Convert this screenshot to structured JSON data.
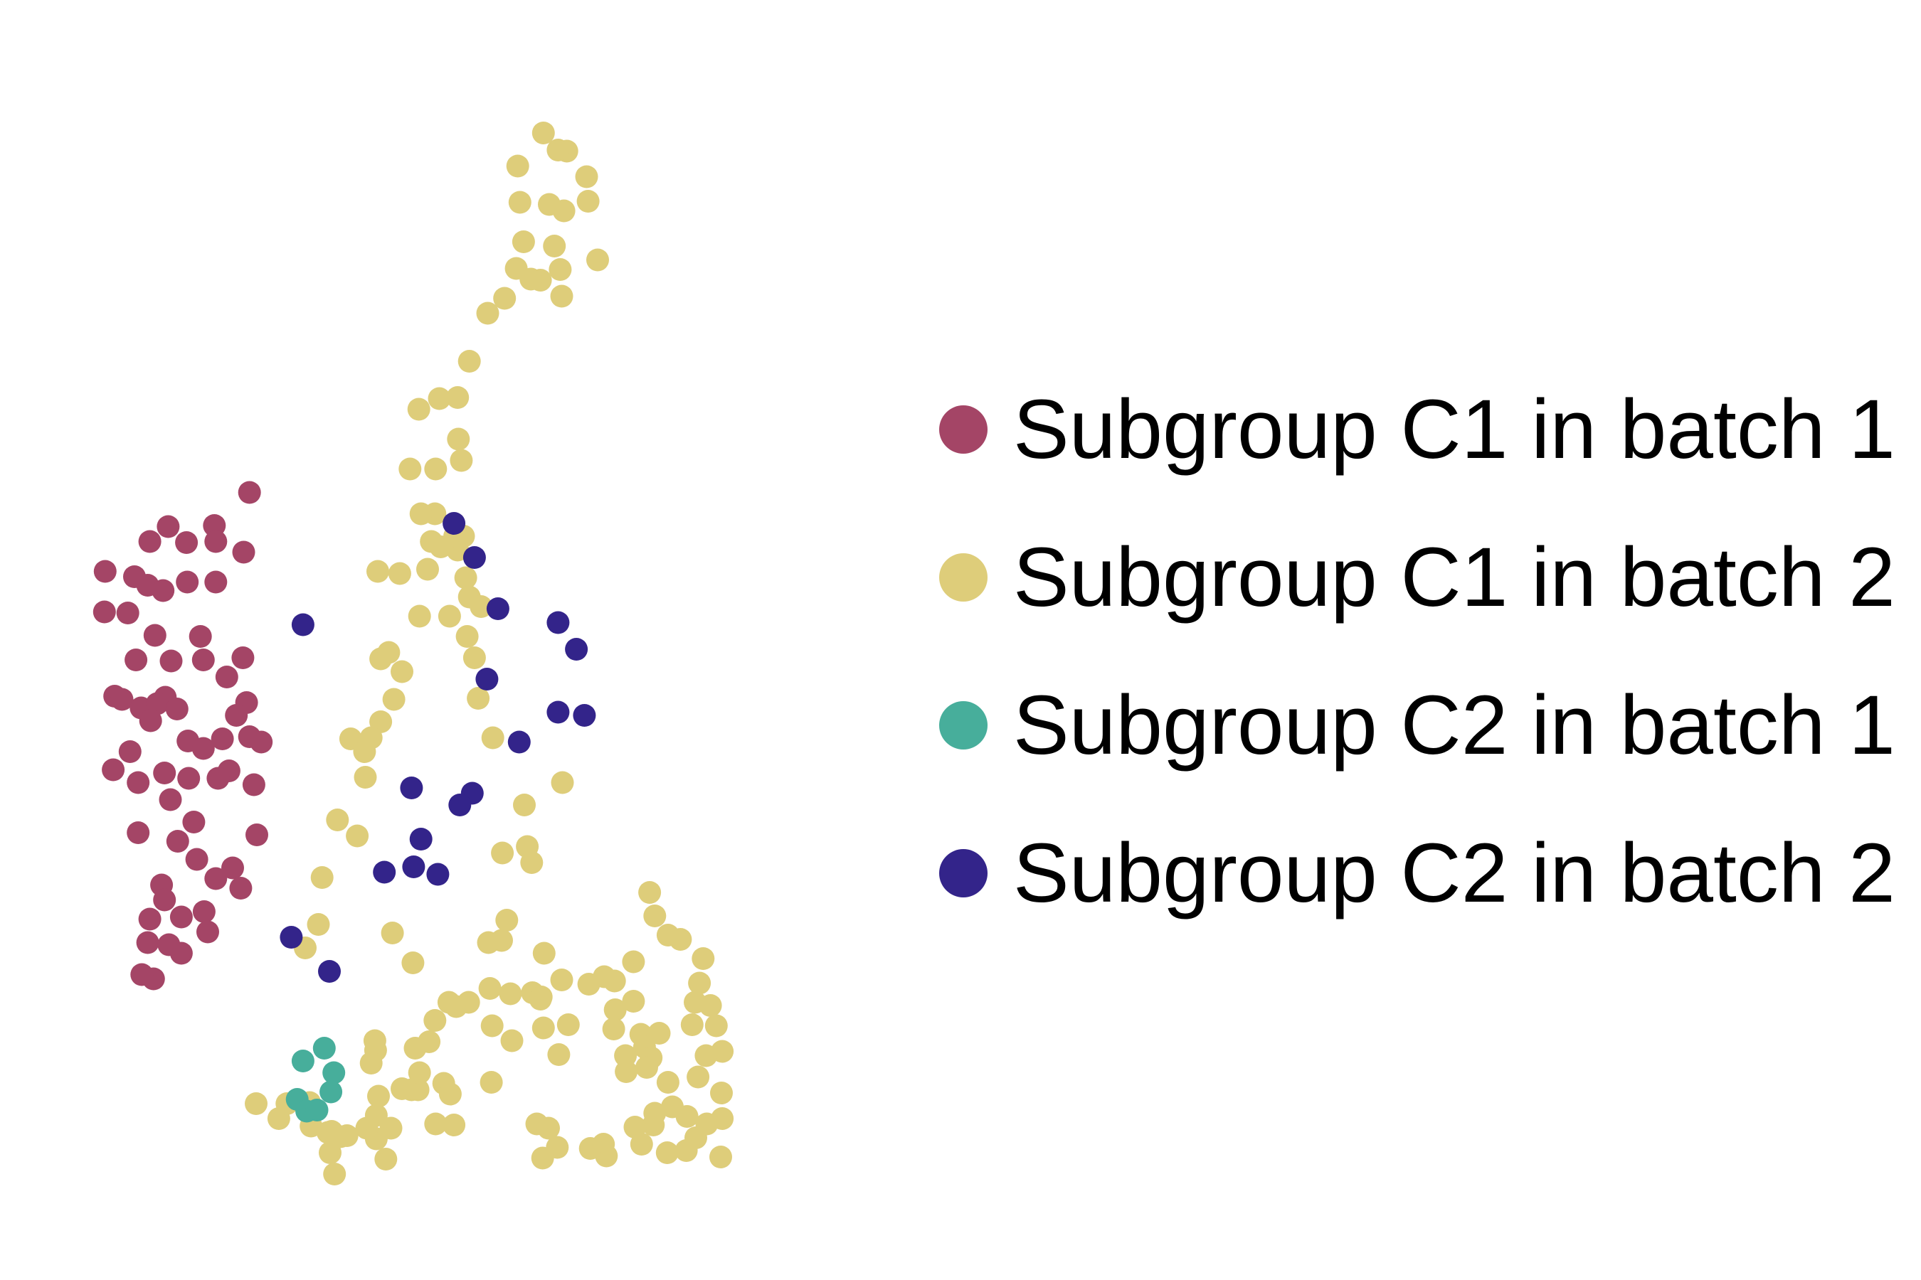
{
  "chart_data": {
    "type": "scatter",
    "title": "",
    "xlabel": "",
    "ylabel": "",
    "xlim": [
      0,
      1
    ],
    "ylim": [
      0,
      1
    ],
    "grid": false,
    "axes_visible": false,
    "legend_position": "right",
    "series": [
      {
        "name": "Subgroup C1 in batch 1",
        "color": "#A44566",
        "points": [
          [
            0.224,
            0.645
          ],
          [
            0.113,
            0.613
          ],
          [
            0.176,
            0.614
          ],
          [
            0.138,
            0.598
          ],
          [
            0.216,
            0.589
          ],
          [
            0.178,
            0.599
          ],
          [
            0.088,
            0.599
          ],
          [
            0.027,
            0.571
          ],
          [
            0.067,
            0.566
          ],
          [
            0.085,
            0.558
          ],
          [
            0.139,
            0.561
          ],
          [
            0.178,
            0.561
          ],
          [
            0.106,
            0.553
          ],
          [
            0.026,
            0.533
          ],
          [
            0.058,
            0.532
          ],
          [
            0.215,
            0.49
          ],
          [
            0.095,
            0.511
          ],
          [
            0.157,
            0.51
          ],
          [
            0.069,
            0.488
          ],
          [
            0.117,
            0.487
          ],
          [
            0.161,
            0.488
          ],
          [
            0.04,
            0.454
          ],
          [
            0.109,
            0.453
          ],
          [
            0.05,
            0.451
          ],
          [
            0.076,
            0.443
          ],
          [
            0.098,
            0.447
          ],
          [
            0.125,
            0.442
          ],
          [
            0.193,
            0.472
          ],
          [
            0.22,
            0.448
          ],
          [
            0.24,
            0.411
          ],
          [
            0.089,
            0.431
          ],
          [
            0.206,
            0.436
          ],
          [
            0.224,
            0.416
          ],
          [
            0.196,
            0.384
          ],
          [
            0.23,
            0.371
          ],
          [
            0.14,
            0.412
          ],
          [
            0.161,
            0.405
          ],
          [
            0.187,
            0.414
          ],
          [
            0.108,
            0.382
          ],
          [
            0.072,
            0.373
          ],
          [
            0.038,
            0.385
          ],
          [
            0.141,
            0.377
          ],
          [
            0.061,
            0.402
          ],
          [
            0.181,
            0.377
          ],
          [
            0.116,
            0.357
          ],
          [
            0.148,
            0.336
          ],
          [
            0.234,
            0.324
          ],
          [
            0.126,
            0.318
          ],
          [
            0.072,
            0.326
          ],
          [
            0.201,
            0.293
          ],
          [
            0.152,
            0.301
          ],
          [
            0.104,
            0.277
          ],
          [
            0.178,
            0.283
          ],
          [
            0.088,
            0.245
          ],
          [
            0.131,
            0.247
          ],
          [
            0.162,
            0.252
          ],
          [
            0.085,
            0.223
          ],
          [
            0.108,
            0.263
          ],
          [
            0.167,
            0.233
          ],
          [
            0.131,
            0.213
          ],
          [
            0.114,
            0.221
          ],
          [
            0.093,
            0.189
          ],
          [
            0.212,
            0.274
          ],
          [
            0.077,
            0.193
          ]
        ]
      },
      {
        "name": "Subgroup C1 in batch 2",
        "color": "#DECD7A",
        "points": [
          [
            0.625,
            0.982
          ],
          [
            0.657,
            0.965
          ],
          [
            0.645,
            0.966
          ],
          [
            0.59,
            0.951
          ],
          [
            0.684,
            0.941
          ],
          [
            0.686,
            0.918
          ],
          [
            0.593,
            0.917
          ],
          [
            0.633,
            0.915
          ],
          [
            0.653,
            0.909
          ],
          [
            0.598,
            0.88
          ],
          [
            0.64,
            0.876
          ],
          [
            0.588,
            0.855
          ],
          [
            0.621,
            0.844
          ],
          [
            0.699,
            0.863
          ],
          [
            0.648,
            0.854
          ],
          [
            0.65,
            0.829
          ],
          [
            0.608,
            0.845
          ],
          [
            0.572,
            0.827
          ],
          [
            0.549,
            0.813
          ],
          [
            0.524,
            0.768
          ],
          [
            0.508,
            0.734
          ],
          [
            0.509,
            0.695
          ],
          [
            0.483,
            0.733
          ],
          [
            0.455,
            0.723
          ],
          [
            0.513,
            0.675
          ],
          [
            0.443,
            0.667
          ],
          [
            0.477,
            0.625
          ],
          [
            0.478,
            0.667
          ],
          [
            0.458,
            0.625
          ],
          [
            0.467,
            0.573
          ],
          [
            0.429,
            0.569
          ],
          [
            0.399,
            0.571
          ],
          [
            0.456,
            0.529
          ],
          [
            0.497,
            0.529
          ],
          [
            0.472,
            0.599
          ],
          [
            0.485,
            0.594
          ],
          [
            0.508,
            0.591
          ],
          [
            0.504,
            0.604
          ],
          [
            0.516,
            0.604
          ],
          [
            0.519,
            0.565
          ],
          [
            0.524,
            0.547
          ],
          [
            0.54,
            0.538
          ],
          [
            0.521,
            0.51
          ],
          [
            0.531,
            0.49
          ],
          [
            0.536,
            0.452
          ],
          [
            0.403,
            0.489
          ],
          [
            0.414,
            0.495
          ],
          [
            0.421,
            0.451
          ],
          [
            0.432,
            0.477
          ],
          [
            0.403,
            0.43
          ],
          [
            0.39,
            0.415
          ],
          [
            0.362,
            0.414
          ],
          [
            0.382,
            0.378
          ],
          [
            0.381,
            0.402
          ],
          [
            0.344,
            0.338
          ],
          [
            0.371,
            0.323
          ],
          [
            0.318,
            0.24
          ],
          [
            0.3,
            0.218
          ],
          [
            0.323,
            0.284
          ],
          [
            0.419,
            0.232
          ],
          [
            0.447,
            0.204
          ],
          [
            0.395,
            0.131
          ],
          [
            0.396,
            0.122
          ],
          [
            0.39,
            0.11
          ],
          [
            0.556,
            0.415
          ],
          [
            0.651,
            0.373
          ],
          [
            0.599,
            0.352
          ],
          [
            0.603,
            0.313
          ],
          [
            0.609,
            0.298
          ],
          [
            0.569,
            0.307
          ],
          [
            0.575,
            0.244
          ],
          [
            0.568,
            0.225
          ],
          [
            0.55,
            0.223
          ],
          [
            0.626,
            0.213
          ],
          [
            0.61,
            0.176
          ],
          [
            0.621,
            0.17
          ],
          [
            0.625,
            0.143
          ],
          [
            0.555,
            0.145
          ],
          [
            0.582,
            0.131
          ],
          [
            0.646,
            0.118
          ],
          [
            0.554,
            0.092
          ],
          [
            0.489,
            0.091
          ],
          [
            0.454,
            0.085
          ],
          [
            0.498,
            0.081
          ],
          [
            0.445,
            0.085
          ],
          [
            0.503,
            0.052
          ],
          [
            0.478,
            0.053
          ],
          [
            0.41,
            0.02
          ],
          [
            0.34,
            0.006
          ],
          [
            0.334,
            0.026
          ],
          [
            0.336,
            0.046
          ],
          [
            0.308,
            0.051
          ],
          [
            0.264,
            0.058
          ],
          [
            0.233,
            0.072
          ],
          [
            0.275,
            0.072
          ],
          [
            0.306,
            0.073
          ],
          [
            0.331,
            0.045
          ],
          [
            0.348,
            0.041
          ],
          [
            0.357,
            0.042
          ],
          [
            0.397,
            0.039
          ],
          [
            0.384,
            0.049
          ],
          [
            0.397,
            0.061
          ],
          [
            0.417,
            0.049
          ],
          [
            0.4,
            0.079
          ],
          [
            0.432,
            0.086
          ],
          [
            0.456,
            0.101
          ],
          [
            0.45,
            0.124
          ],
          [
            0.469,
            0.13
          ],
          [
            0.477,
            0.15
          ],
          [
            0.506,
            0.163
          ],
          [
            0.496,
            0.167
          ],
          [
            0.523,
            0.167
          ],
          [
            0.552,
            0.18
          ],
          [
            0.58,
            0.175
          ],
          [
            0.622,
            0.172
          ],
          [
            0.65,
            0.188
          ],
          [
            0.659,
            0.146
          ],
          [
            0.687,
            0.184
          ],
          [
            0.708,
            0.191
          ],
          [
            0.722,
            0.187
          ],
          [
            0.748,
            0.205
          ],
          [
            0.748,
            0.168
          ],
          [
            0.723,
            0.16
          ],
          [
            0.721,
            0.142
          ],
          [
            0.758,
            0.137
          ],
          [
            0.783,
            0.138
          ],
          [
            0.763,
            0.125
          ],
          [
            0.737,
            0.117
          ],
          [
            0.772,
            0.115
          ],
          [
            0.766,
            0.106
          ],
          [
            0.738,
            0.102
          ],
          [
            0.795,
            0.092
          ],
          [
            0.801,
            0.069
          ],
          [
            0.777,
            0.063
          ],
          [
            0.775,
            0.052
          ],
          [
            0.75,
            0.05
          ],
          [
            0.759,
            0.034
          ],
          [
            0.794,
            0.026
          ],
          [
            0.707,
            0.034
          ],
          [
            0.711,
            0.023
          ],
          [
            0.689,
            0.03
          ],
          [
            0.632,
            0.049
          ],
          [
            0.616,
            0.053
          ],
          [
            0.644,
            0.031
          ],
          [
            0.624,
            0.021
          ],
          [
            0.77,
            0.27
          ],
          [
            0.777,
            0.248
          ],
          [
            0.795,
            0.23
          ],
          [
            0.812,
            0.226
          ],
          [
            0.843,
            0.208
          ],
          [
            0.838,
            0.185
          ],
          [
            0.832,
            0.167
          ],
          [
            0.853,
            0.164
          ],
          [
            0.861,
            0.145
          ],
          [
            0.828,
            0.146
          ],
          [
            0.869,
            0.121
          ],
          [
            0.847,
            0.117
          ],
          [
            0.836,
            0.097
          ],
          [
            0.868,
            0.082
          ],
          [
            0.869,
            0.058
          ],
          [
            0.821,
            0.06
          ],
          [
            0.848,
            0.053
          ],
          [
            0.833,
            0.04
          ],
          [
            0.82,
            0.028
          ],
          [
            0.867,
            0.022
          ]
        ]
      },
      {
        "name": "Subgroup C2 in batch 1",
        "color": "#47AE9B",
        "points": [
          [
            0.297,
            0.112
          ],
          [
            0.326,
            0.124
          ],
          [
            0.339,
            0.101
          ],
          [
            0.335,
            0.083
          ],
          [
            0.289,
            0.076
          ],
          [
            0.302,
            0.065
          ],
          [
            0.316,
            0.066
          ]
        ]
      },
      {
        "name": "Subgroup C2 in batch 2",
        "color": "#33248A",
        "points": [
          [
            0.503,
            0.616
          ],
          [
            0.531,
            0.584
          ],
          [
            0.563,
            0.536
          ],
          [
            0.645,
            0.523
          ],
          [
            0.67,
            0.498
          ],
          [
            0.297,
            0.521
          ],
          [
            0.548,
            0.47
          ],
          [
            0.645,
            0.439
          ],
          [
            0.681,
            0.436
          ],
          [
            0.592,
            0.411
          ],
          [
            0.445,
            0.368
          ],
          [
            0.528,
            0.363
          ],
          [
            0.511,
            0.352
          ],
          [
            0.458,
            0.32
          ],
          [
            0.448,
            0.294
          ],
          [
            0.408,
            0.289
          ],
          [
            0.481,
            0.287
          ],
          [
            0.281,
            0.228
          ],
          [
            0.333,
            0.196
          ]
        ]
      }
    ]
  },
  "legend": {
    "items": [
      {
        "label": "Subgroup C1 in batch 1",
        "color": "#A44566"
      },
      {
        "label": "Subgroup C1 in batch 2",
        "color": "#DECD7A"
      },
      {
        "label": "Subgroup C2 in batch 1",
        "color": "#47AE9B"
      },
      {
        "label": "Subgroup C2 in batch 2",
        "color": "#33248A"
      }
    ]
  }
}
